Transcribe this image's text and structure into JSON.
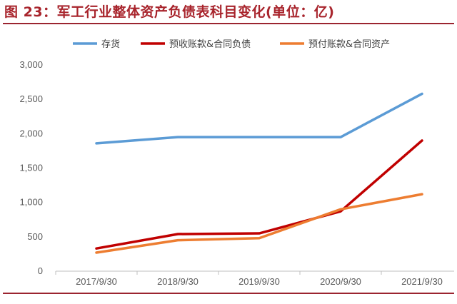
{
  "figure": {
    "title": "图 23：军工行业整体资产负债表科目变化(单位：亿)"
  },
  "chart_data": {
    "type": "line",
    "title": "图 23：军工行业整体资产负债表科目变化(单位：亿)",
    "xlabel": "",
    "ylabel": "",
    "categories": [
      "2017/9/30",
      "2018/9/30",
      "2019/9/30",
      "2020/9/30",
      "2021/9/30"
    ],
    "ylim": [
      0,
      3000
    ],
    "yticks": [
      0,
      500,
      1000,
      1500,
      2000,
      2500,
      3000
    ],
    "ytick_labels": [
      "0",
      "500",
      "1,000",
      "1,500",
      "2,000",
      "2,500",
      "3,000"
    ],
    "grid": false,
    "legend_position": "top",
    "series": [
      {
        "name": "存货",
        "color": "#5b9bd5",
        "values": [
          1860,
          1950,
          1950,
          1950,
          2580
        ]
      },
      {
        "name": "预收账款&合同负债",
        "color": "#c00000",
        "values": [
          330,
          540,
          550,
          870,
          1900
        ]
      },
      {
        "name": "预付账款&合同资产",
        "color": "#ed7d31",
        "values": [
          270,
          450,
          480,
          900,
          1120
        ]
      }
    ]
  }
}
